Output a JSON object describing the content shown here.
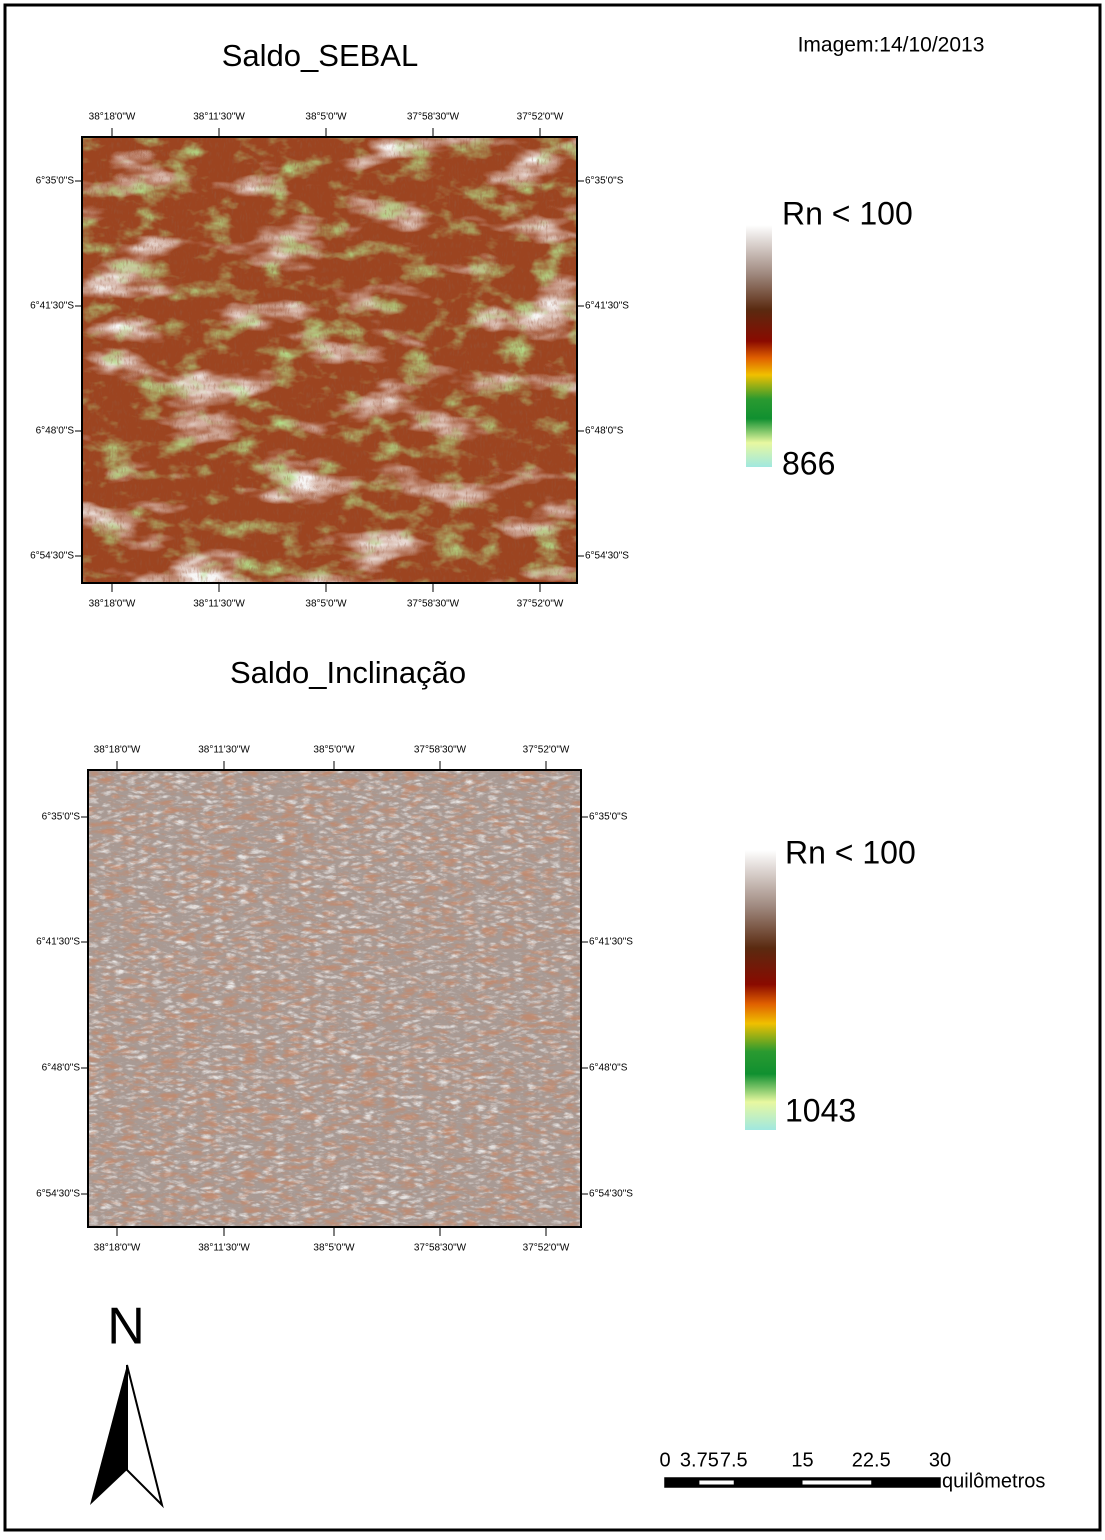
{
  "header": {
    "date": "Imagem:14/10/2013"
  },
  "maps": [
    {
      "title": "Saldo_SEBAL",
      "x_labels": [
        "38°18'0\"W",
        "38°11'30\"W",
        "38°5'0\"W",
        "37°58'30\"W",
        "37°52'0\"W"
      ],
      "y_labels": [
        "6°35'0\"S",
        "6°41'30\"S",
        "6°48'0\"S",
        "6°54'30\"S"
      ],
      "legend": {
        "top": "Rn < 100",
        "bottom": "866"
      }
    },
    {
      "title": "Saldo_Inclinação",
      "x_labels": [
        "38°18'0\"W",
        "38°11'30\"W",
        "38°5'0\"W",
        "37°58'30\"W",
        "37°52'0\"W"
      ],
      "y_labels": [
        "6°35'0\"S",
        "6°41'30\"S",
        "6°48'0\"S",
        "6°54'30\"S"
      ],
      "legend": {
        "top": "Rn < 100",
        "bottom": "1043"
      }
    }
  ],
  "north_arrow": {
    "label": "N"
  },
  "scale_bar": {
    "labels": [
      0,
      3.75,
      7.5,
      15,
      22.5,
      30
    ],
    "unit": "quilômetros"
  }
}
